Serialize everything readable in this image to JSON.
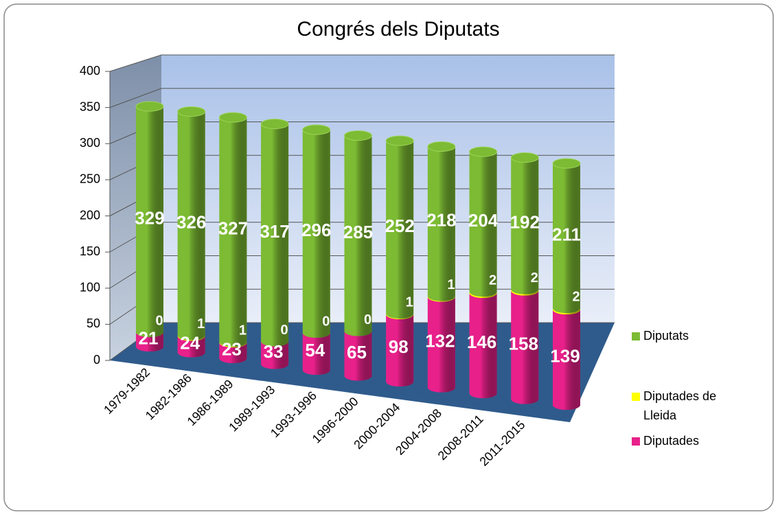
{
  "chart_data": {
    "type": "bar3d_stacked",
    "title": "Congrés dels Diputats",
    "categories": [
      "1979-1982",
      "1982-1986",
      "1986-1989",
      "1989-1993",
      "1993-1996",
      "1996-2000",
      "2000-2004",
      "2004-2008",
      "2008-2011",
      "2011-2015",
      null
    ],
    "series": [
      {
        "name": "Diputades",
        "color": "#e8208a",
        "values": [
          21,
          24,
          23,
          33,
          54,
          65,
          98,
          132,
          146,
          158,
          139
        ]
      },
      {
        "name": "Diputades de Lleida",
        "color": "#ffff00",
        "values": [
          0,
          1,
          1,
          0,
          0,
          0,
          1,
          1,
          2,
          2,
          2
        ]
      },
      {
        "name": "Diputats",
        "color": "#7cbb33",
        "values": [
          329,
          326,
          327,
          317,
          296,
          285,
          252,
          218,
          204,
          192,
          211
        ]
      }
    ],
    "ylim": [
      0,
      400
    ],
    "yticks": [
      0,
      50,
      100,
      150,
      200,
      250,
      300,
      350,
      400
    ],
    "grid": true,
    "legend": "right"
  }
}
